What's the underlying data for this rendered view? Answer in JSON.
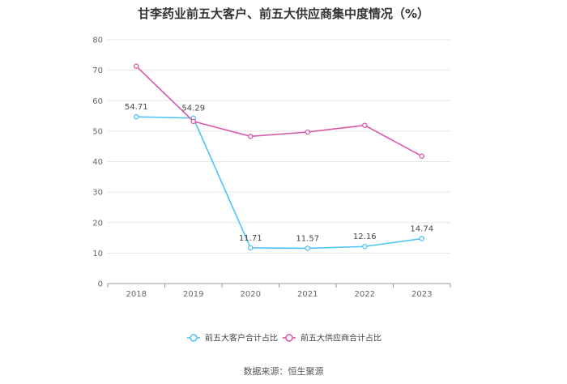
{
  "chart_data": {
    "type": "line",
    "title": "甘李药业前五大客户、前五大供应商集中度情况（%）",
    "categories": [
      "2018",
      "2019",
      "2020",
      "2021",
      "2022",
      "2023"
    ],
    "series": [
      {
        "name": "前五大客户合计占比",
        "color": "#4fc3f7",
        "values": [
          54.71,
          54.29,
          11.71,
          11.57,
          12.16,
          14.74
        ],
        "show_labels": true
      },
      {
        "name": "前五大供应商合计占比",
        "color": "#d957a8",
        "values": [
          71.3,
          53.2,
          48.3,
          49.7,
          51.9,
          41.8
        ],
        "show_labels": false
      }
    ],
    "y_ticks": [
      "0",
      "10",
      "20",
      "30",
      "40",
      "50",
      "60",
      "70",
      "80"
    ],
    "ylim": [
      0,
      80
    ],
    "grid": true,
    "legend_position": "bottom"
  },
  "source": "数据来源：恒生聚源"
}
